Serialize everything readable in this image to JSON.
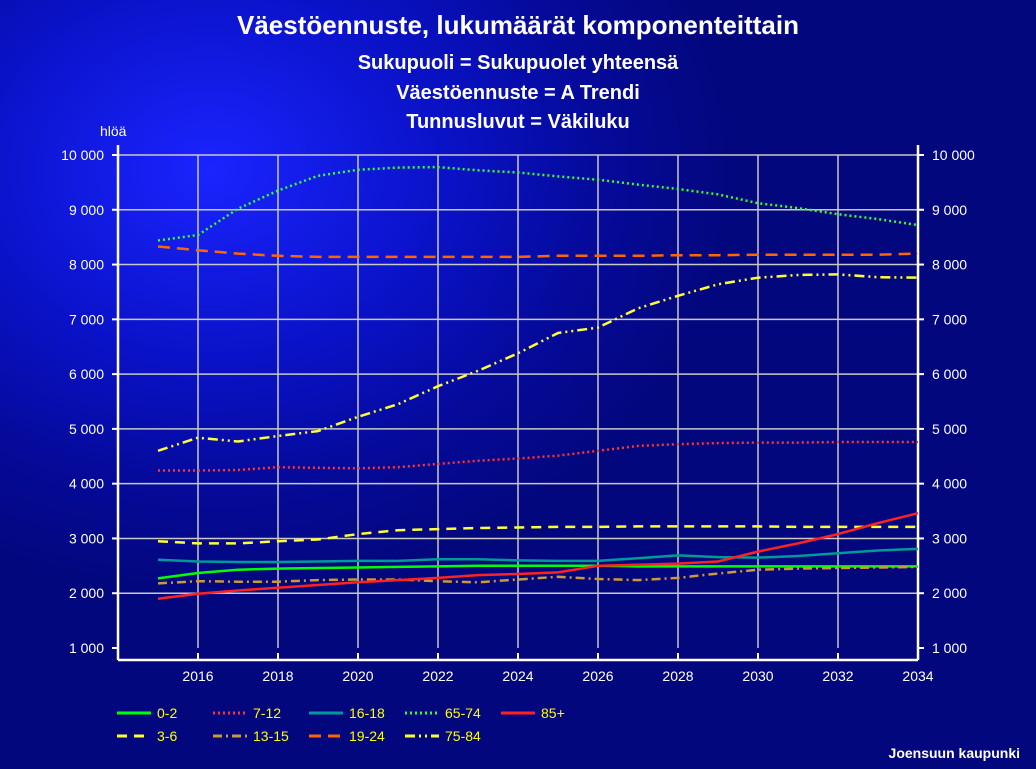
{
  "header": {
    "title": "Väestöennuste, lukumäärät komponenteittain",
    "line2": "Sukupuoli = Sukupuolet yhteensä",
    "line3": "Väestöennuste = A Trendi",
    "line4": "Tunnusluvut = Väkiluku"
  },
  "footer": {
    "source": "Joensuun kaupunki"
  },
  "chart_data": {
    "type": "line",
    "title": "Väestöennuste, lukumäärät komponenteittain",
    "ylabel": "hlöä",
    "ylim": [
      1000,
      10000
    ],
    "xlim": [
      2014,
      2034
    ],
    "x": [
      2015,
      2016,
      2017,
      2018,
      2019,
      2020,
      2021,
      2022,
      2023,
      2024,
      2025,
      2026,
      2027,
      2028,
      2029,
      2030,
      2031,
      2032,
      2033,
      2034
    ],
    "x_ticks": [
      "2016",
      "2018",
      "2020",
      "2022",
      "2024",
      "2026",
      "2028",
      "2030",
      "2032",
      "2034"
    ],
    "y_ticks": [
      "1 000",
      "2 000",
      "3 000",
      "4 000",
      "5 000",
      "6 000",
      "7 000",
      "8 000",
      "9 000",
      "10 000"
    ],
    "grid": true,
    "legend_position": "bottom",
    "series": [
      {
        "name": "0-2",
        "color": "#00ff00",
        "dash": "solid",
        "values": [
          2270,
          2370,
          2430,
          2450,
          2460,
          2470,
          2480,
          2490,
          2500,
          2500,
          2500,
          2500,
          2490,
          2490,
          2490,
          2490,
          2490,
          2490,
          2490,
          2490
        ]
      },
      {
        "name": "3-6",
        "color": "#ffff33",
        "dash": "dashed",
        "values": [
          2950,
          2910,
          2910,
          2950,
          2980,
          3080,
          3150,
          3170,
          3190,
          3200,
          3210,
          3210,
          3220,
          3220,
          3220,
          3220,
          3210,
          3210,
          3210,
          3210
        ]
      },
      {
        "name": "7-12",
        "color": "#ff3333",
        "dash": "dotted",
        "values": [
          4240,
          4240,
          4250,
          4300,
          4290,
          4280,
          4300,
          4360,
          4420,
          4460,
          4510,
          4600,
          4690,
          4720,
          4740,
          4750,
          4750,
          4760,
          4760,
          4760
        ]
      },
      {
        "name": "13-15",
        "color": "#cc9933",
        "dash": "dashdot",
        "values": [
          2180,
          2220,
          2210,
          2210,
          2240,
          2250,
          2250,
          2220,
          2200,
          2250,
          2300,
          2260,
          2240,
          2280,
          2360,
          2430,
          2450,
          2460,
          2470,
          2480
        ]
      },
      {
        "name": "16-18",
        "color": "#009999",
        "dash": "solid",
        "values": [
          2610,
          2580,
          2570,
          2570,
          2580,
          2590,
          2590,
          2620,
          2620,
          2600,
          2590,
          2590,
          2640,
          2690,
          2660,
          2650,
          2680,
          2730,
          2780,
          2810
        ]
      },
      {
        "name": "19-24",
        "color": "#ff6600",
        "dash": "longdash",
        "values": [
          8330,
          8260,
          8200,
          8160,
          8140,
          8140,
          8140,
          8140,
          8140,
          8140,
          8160,
          8160,
          8160,
          8170,
          8170,
          8180,
          8180,
          8180,
          8180,
          8200
        ]
      },
      {
        "name": "65-74",
        "color": "#33ff33",
        "dash": "dotted",
        "values": [
          8440,
          8540,
          9020,
          9350,
          9620,
          9730,
          9770,
          9780,
          9720,
          9680,
          9610,
          9550,
          9460,
          9380,
          9280,
          9120,
          9030,
          8920,
          8830,
          8720
        ]
      },
      {
        "name": "75-84",
        "color": "#ffff33",
        "dash": "dashdotdot",
        "values": [
          4600,
          4840,
          4770,
          4870,
          4960,
          5220,
          5450,
          5780,
          6060,
          6380,
          6750,
          6850,
          7200,
          7430,
          7640,
          7760,
          7810,
          7820,
          7770,
          7760
        ]
      },
      {
        "name": "85+",
        "color": "#ff2222",
        "dash": "solid",
        "values": [
          1900,
          1990,
          2050,
          2100,
          2150,
          2200,
          2240,
          2280,
          2330,
          2350,
          2380,
          2500,
          2520,
          2540,
          2580,
          2760,
          2910,
          3080,
          3280,
          3460
        ]
      }
    ]
  }
}
